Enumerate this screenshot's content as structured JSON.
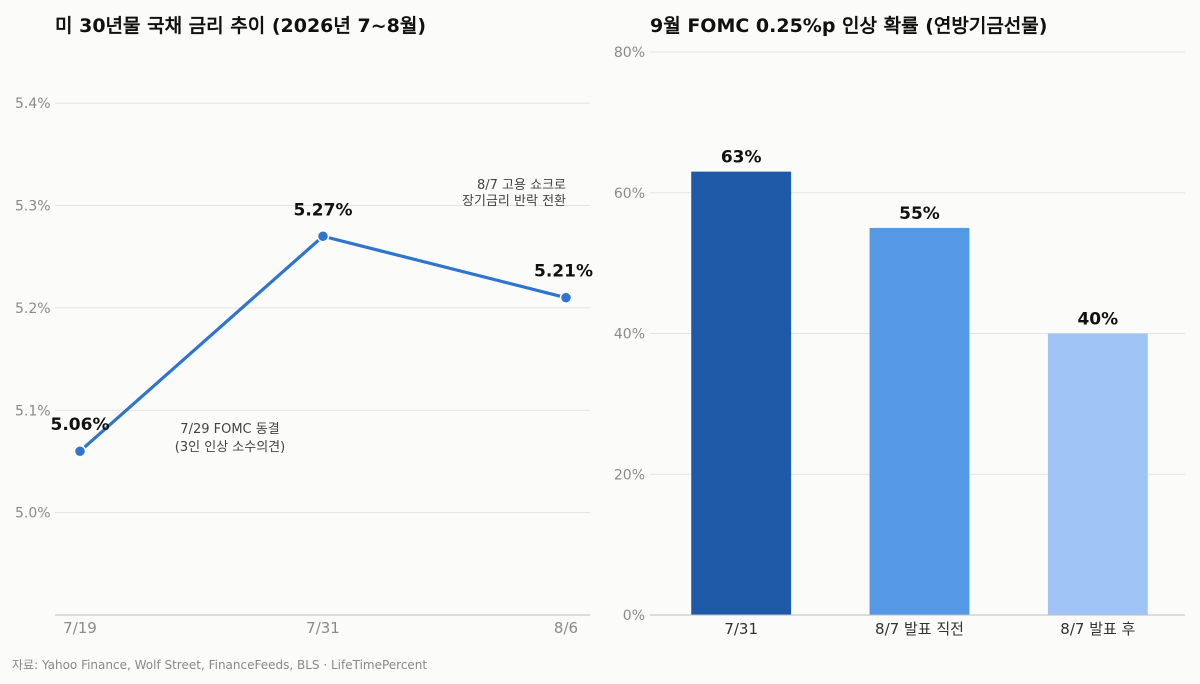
{
  "footer": "자료: Yahoo Finance, Wolf Street, FinanceFeeds, BLS  ·  LifeTimePercent",
  "chart_data": [
    {
      "type": "line",
      "title": "미 30년물 국채 금리 추이 (2026년 7~8월)",
      "x": [
        "7/19",
        "7/31",
        "8/6"
      ],
      "series": [
        {
          "values": [
            5.06,
            5.27,
            5.21
          ],
          "color": "#2f74cf"
        }
      ],
      "data_labels": [
        "5.06%",
        "5.27%",
        "5.21%"
      ],
      "ylim": [
        4.9,
        5.45
      ],
      "yticks": [
        5.0,
        5.1,
        5.2,
        5.3,
        5.4
      ],
      "ytick_labels": [
        "5.0%",
        "5.1%",
        "5.2%",
        "5.3%",
        "5.4%"
      ],
      "grid": true,
      "annotations": [
        {
          "lines": [
            "7/29 FOMC 동결",
            "(3인 인상 소수의견)"
          ]
        },
        {
          "lines": [
            "8/7 고용 쇼크로",
            "장기금리 반락 전환"
          ]
        }
      ]
    },
    {
      "type": "bar",
      "title": "9월 FOMC 0.25%p 인상 확률 (연방기금선물)",
      "categories": [
        "7/31",
        "8/7 발표 직전",
        "8/7 발표 후"
      ],
      "values": [
        63,
        55,
        40
      ],
      "data_labels": [
        "63%",
        "55%",
        "40%"
      ],
      "colors": [
        "#1f5aa8",
        "#5599e6",
        "#a0c4f5"
      ],
      "ylim": [
        0,
        80
      ],
      "yticks": [
        0,
        20,
        40,
        60,
        80
      ],
      "ytick_labels": [
        "0%",
        "20%",
        "40%",
        "60%",
        "80%"
      ],
      "grid": true
    }
  ]
}
